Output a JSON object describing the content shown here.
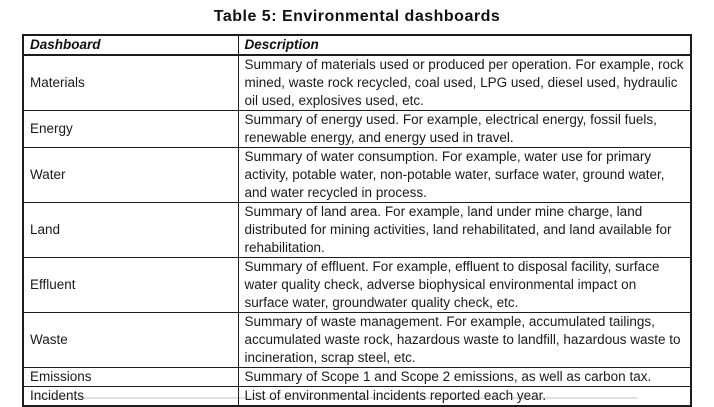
{
  "title": "Table 5: Environmental dashboards",
  "table": {
    "columns": [
      "Dashboard",
      "Description"
    ],
    "rows": [
      {
        "dashboard": "Materials",
        "description": "Summary of materials used or produced per operation. For example, rock mined, waste rock recycled, coal used, LPG used, diesel used, hydraulic oil used, explosives used, etc."
      },
      {
        "dashboard": "Energy",
        "description": "Summary of energy used. For example, electrical energy, fossil fuels, renewable energy, and energy used in travel."
      },
      {
        "dashboard": "Water",
        "description": "Summary of water consumption. For example, water use for primary activity, potable water, non-potable water, surface water, ground water, and water recycled in process."
      },
      {
        "dashboard": "Land",
        "description": "Summary of land area. For example, land under mine charge, land distributed for mining activities, land rehabilitated, and land available for rehabilitation."
      },
      {
        "dashboard": "Effluent",
        "description": "Summary of effluent. For example, effluent to disposal facility, surface water quality check, adverse biophysical environmental impact on surface water, groundwater quality check, etc."
      },
      {
        "dashboard": "Waste",
        "description": "Summary of waste management. For example, accumulated tailings, accumulated waste rock, hazardous waste to landfill, hazardous waste to incineration, scrap steel, etc."
      },
      {
        "dashboard": "Emissions",
        "description": "Summary of Scope 1 and Scope 2 emissions, as well as carbon tax."
      },
      {
        "dashboard": "Incidents",
        "description": "List of environmental incidents reported each year."
      }
    ]
  },
  "colors": {
    "background": "#ffffff",
    "border": "#1c1c1c",
    "text": "#1a1a1a"
  }
}
